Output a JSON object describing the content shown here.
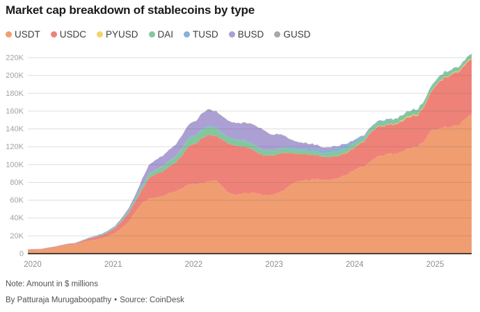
{
  "title": "Market cap breakdown of stablecoins by type",
  "note": "Note: Amount in $ millions",
  "byline": "By Patturaja Murugaboopathy",
  "separator": "•",
  "source": "Source: CoinDesk",
  "chart_data": {
    "type": "area",
    "stacked": true,
    "title": "Market cap breakdown of stablecoins by type",
    "xlabel": "",
    "ylabel": "",
    "values_unit": "K = thousands of $ millions ($ billions)",
    "x_interval": "monthly",
    "x_start": "2019-12",
    "x_end": "2025-06",
    "x_tick_labels": [
      "2020",
      "2021",
      "2022",
      "2023",
      "2024",
      "2025"
    ],
    "y_tick_labels": [
      "0",
      "20K",
      "40K",
      "60K",
      "80K",
      "100K",
      "120K",
      "140K",
      "160K",
      "180K",
      "200K",
      "220K"
    ],
    "ylim": [
      0,
      220
    ],
    "grid": true,
    "legend_position": "top",
    "series": [
      {
        "name": "USDT",
        "color": "#F09D72",
        "values": [
          4.1,
          4.3,
          4.6,
          5.8,
          6.9,
          8.5,
          9.8,
          10.3,
          12.5,
          14.4,
          15.7,
          17.5,
          20,
          23.5,
          29,
          36,
          47,
          57,
          62,
          63,
          64.5,
          68,
          70,
          73.5,
          78,
          78.2,
          79.5,
          81,
          82.5,
          74,
          67.5,
          66,
          67.5,
          68,
          68.5,
          65.5,
          66,
          67.5,
          70.5,
          76.5,
          81,
          82.5,
          83,
          83.8,
          83,
          83.2,
          84.5,
          87.5,
          91.5,
          95.5,
          98,
          104,
          108.5,
          111,
          112.5,
          112.5,
          116,
          119,
          120.5,
          127,
          138,
          139.5,
          142,
          143.5,
          145,
          151,
          155.5
        ]
      },
      {
        "name": "USDC",
        "color": "#EE8279",
        "values": [
          0.52,
          0.52,
          0.46,
          0.68,
          0.73,
          0.73,
          0.93,
          1.1,
          1.4,
          2.2,
          2.8,
          3,
          3.9,
          5.2,
          7.5,
          9.7,
          11.5,
          14.5,
          23,
          26,
          27.5,
          29.5,
          32.5,
          37,
          43,
          45.5,
          50.5,
          52,
          49.5,
          52.5,
          55.5,
          55,
          52.5,
          50,
          46,
          44.5,
          44.5,
          43.5,
          42.5,
          36,
          31,
          29.5,
          28,
          26.5,
          26,
          25.5,
          25,
          24.5,
          24.5,
          25.5,
          28,
          32,
          33.5,
          32.5,
          32.5,
          33,
          34.5,
          35.5,
          35,
          38.5,
          43,
          51.5,
          56,
          58.5,
          59.5,
          61,
          61.5
        ]
      },
      {
        "name": "PYUSD",
        "color": "#F4D36A",
        "values": [
          0,
          0,
          0,
          0,
          0,
          0,
          0,
          0,
          0,
          0,
          0,
          0,
          0,
          0,
          0,
          0,
          0,
          0,
          0,
          0,
          0,
          0,
          0,
          0,
          0,
          0,
          0,
          0,
          0,
          0,
          0,
          0,
          0,
          0,
          0,
          0,
          0,
          0,
          0,
          0,
          0,
          0,
          0,
          0,
          0.05,
          0.1,
          0.15,
          0.2,
          0.3,
          0.3,
          0.3,
          0.35,
          0.4,
          0.4,
          0.45,
          0.6,
          1,
          1,
          0.7,
          0.6,
          0.5,
          0.5,
          0.7,
          0.8,
          0.85,
          0.9,
          1
        ]
      },
      {
        "name": "DAI",
        "color": "#85C79D",
        "values": [
          0.1,
          0.12,
          0.12,
          0.1,
          0.1,
          0.12,
          0.13,
          0.2,
          0.4,
          0.45,
          0.6,
          0.9,
          1.1,
          1.3,
          1.8,
          2.5,
          3.2,
          4.2,
          4.8,
          5.2,
          5.7,
          6.2,
          6.5,
          8,
          8.9,
          9,
          9.4,
          9.6,
          8.8,
          6.8,
          6.5,
          6.9,
          6.8,
          6.5,
          5.8,
          5.5,
          5.8,
          5.5,
          5.2,
          4.9,
          4.7,
          4.6,
          4.4,
          4.3,
          3.9,
          5.3,
          5.5,
          5.3,
          5.3,
          4.9,
          4.6,
          4.5,
          4.7,
          5,
          5.1,
          5.1,
          5.2,
          5.3,
          5.6,
          5.4,
          5.3,
          5.3,
          5.2,
          4.5,
          4.2,
          4.4,
          4.5
        ]
      },
      {
        "name": "TUSD",
        "color": "#87B0DB",
        "values": [
          0.14,
          0.14,
          0.14,
          0.14,
          0.14,
          0.14,
          0.15,
          0.15,
          0.2,
          0.25,
          0.28,
          0.3,
          0.3,
          0.3,
          0.35,
          0.35,
          0.35,
          0.3,
          0.3,
          0.3,
          0.3,
          0.4,
          0.45,
          0.9,
          1.2,
          1.4,
          1.4,
          1.4,
          1.3,
          1.2,
          1.2,
          1,
          1,
          1,
          0.9,
          0.8,
          0.75,
          0.9,
          1.1,
          2,
          2.1,
          2,
          3.1,
          2.9,
          2.8,
          3.1,
          3.3,
          3.6,
          2.8,
          2.3,
          1.7,
          1.3,
          1.1,
          1,
          0.6,
          0.5,
          0.5,
          0.5,
          0.5,
          0.5,
          0.5,
          0.5,
          0.5,
          0.5,
          0.5,
          0.5,
          0.5
        ]
      },
      {
        "name": "BUSD",
        "color": "#AB9FD3",
        "values": [
          0.03,
          0.03,
          0.04,
          0.1,
          0.15,
          0.15,
          0.18,
          0.2,
          0.3,
          0.45,
          0.6,
          0.65,
          0.9,
          1.1,
          1.7,
          2.6,
          3.8,
          7.5,
          9.5,
          10.5,
          11.5,
          12.2,
          13,
          14,
          14.5,
          14.8,
          17.2,
          17.6,
          17.5,
          18,
          17.5,
          17.8,
          18.5,
          20.5,
          21.5,
          22.5,
          16.5,
          16,
          13.5,
          8,
          6.5,
          5.5,
          4.5,
          4,
          3.3,
          2.6,
          2,
          1.7,
          1,
          0.7,
          0.4,
          0.2,
          0.1,
          0.08,
          0.07,
          0.07,
          0.06,
          0.06,
          0.06,
          0.06,
          0.06,
          0.06,
          0.06,
          0.06,
          0.06,
          0.06,
          0.06
        ]
      },
      {
        "name": "GUSD",
        "color": "#A8A8A8",
        "values": [
          0.004,
          0.004,
          0.004,
          0.005,
          0.006,
          0.007,
          0.008,
          0.009,
          0.01,
          0.012,
          0.015,
          0.018,
          0.02,
          0.03,
          0.05,
          0.08,
          0.1,
          0.12,
          0.15,
          0.17,
          0.2,
          0.22,
          0.25,
          0.3,
          0.3,
          0.3,
          0.3,
          0.3,
          0.25,
          0.22,
          0.25,
          0.3,
          0.4,
          0.5,
          0.6,
          0.6,
          0.6,
          0.6,
          0.55,
          0.5,
          0.45,
          0.4,
          0.4,
          0.35,
          0.3,
          0.3,
          0.25,
          0.22,
          0.2,
          0.18,
          0.15,
          0.12,
          0.1,
          0.1,
          0.1,
          0.08,
          0.07,
          0.07,
          0.07,
          0.06,
          0.06,
          0.06,
          0.05,
          0.05,
          0.05,
          0.05,
          0.05
        ]
      }
    ]
  }
}
